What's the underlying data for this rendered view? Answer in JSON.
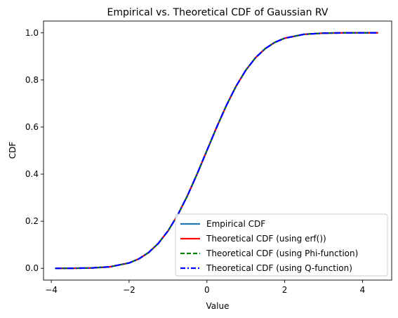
{
  "chart_data": {
    "type": "line",
    "title": "Empirical vs. Theoretical CDF of Gaussian RV",
    "xlabel": "Value",
    "ylabel": "CDF",
    "xlim": [
      -4.2,
      4.75
    ],
    "ylim": [
      -0.05,
      1.05
    ],
    "xticks": [
      -4,
      -2,
      0,
      2,
      4
    ],
    "xtick_labels": [
      "−4",
      "−2",
      "0",
      "2",
      "4"
    ],
    "yticks": [
      0.0,
      0.2,
      0.4,
      0.6,
      0.8,
      1.0
    ],
    "ytick_labels": [
      "0.0",
      "0.2",
      "0.4",
      "0.6",
      "0.8",
      "1.0"
    ],
    "grid": false,
    "legend_position": "lower-right",
    "x": [
      -3.9,
      -3.5,
      -3.0,
      -2.5,
      -2.0,
      -1.75,
      -1.5,
      -1.25,
      -1.0,
      -0.75,
      -0.5,
      -0.25,
      0.0,
      0.25,
      0.5,
      0.75,
      1.0,
      1.25,
      1.5,
      1.75,
      2.0,
      2.5,
      3.0,
      3.5,
      4.0,
      4.4
    ],
    "series": [
      {
        "name": "Empirical CDF",
        "color": "#1f77b4",
        "style": "solid",
        "values": [
          0.0,
          0.0002,
          0.0013,
          0.0062,
          0.0228,
          0.0401,
          0.0668,
          0.1056,
          0.1587,
          0.2266,
          0.3085,
          0.4013,
          0.5,
          0.5987,
          0.6915,
          0.7734,
          0.8413,
          0.8944,
          0.9332,
          0.9599,
          0.9772,
          0.9938,
          0.9987,
          0.9998,
          1.0,
          1.0
        ]
      },
      {
        "name": "Theoretical CDF (using erf())",
        "color": "#ff0000",
        "style": "solid",
        "values": [
          0.0,
          0.0002,
          0.0013,
          0.0062,
          0.0228,
          0.0401,
          0.0668,
          0.1056,
          0.1587,
          0.2266,
          0.3085,
          0.4013,
          0.5,
          0.5987,
          0.6915,
          0.7734,
          0.8413,
          0.8944,
          0.9332,
          0.9599,
          0.9772,
          0.9938,
          0.9987,
          0.9998,
          1.0,
          1.0
        ]
      },
      {
        "name": "Theoretical CDF (using Phi-function)",
        "color": "#008000",
        "style": "dashed",
        "values": [
          0.0,
          0.0002,
          0.0013,
          0.0062,
          0.0228,
          0.0401,
          0.0668,
          0.1056,
          0.1587,
          0.2266,
          0.3085,
          0.4013,
          0.5,
          0.5987,
          0.6915,
          0.7734,
          0.8413,
          0.8944,
          0.9332,
          0.9599,
          0.9772,
          0.9938,
          0.9987,
          0.9998,
          1.0,
          1.0
        ]
      },
      {
        "name": "Theoretical CDF (using Q-function)",
        "color": "#0000ff",
        "style": "dashdot",
        "values": [
          0.0,
          0.0002,
          0.0013,
          0.0062,
          0.0228,
          0.0401,
          0.0668,
          0.1056,
          0.1587,
          0.2266,
          0.3085,
          0.4013,
          0.5,
          0.5987,
          0.6915,
          0.7734,
          0.8413,
          0.8944,
          0.9332,
          0.9599,
          0.9772,
          0.9938,
          0.9987,
          0.9998,
          1.0,
          1.0
        ]
      }
    ]
  }
}
